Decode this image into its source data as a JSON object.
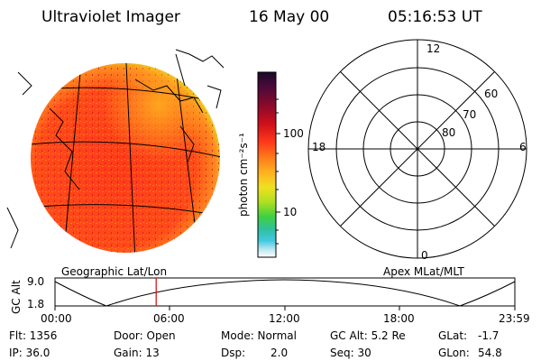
{
  "header": {
    "title": "Ultraviolet Imager",
    "date": "16 May 00",
    "time": "05:16:53 UT"
  },
  "colorbar": {
    "unit_label": "photon cm⁻²s⁻¹",
    "ticks": [
      "100",
      "10"
    ],
    "colors": [
      "#1a0a2a",
      "#4a0a3a",
      "#8a0a2a",
      "#d0101a",
      "#ff3a1a",
      "#ff7a1a",
      "#ffb020",
      "#f0e020",
      "#b0e020",
      "#40d040",
      "#30c0a0",
      "#40c8e0",
      "#c0e8f0",
      "#ffffff"
    ]
  },
  "polar_plot": {
    "mlt_labels": {
      "top": "12",
      "left": "18",
      "right": "6",
      "bottom": "0"
    },
    "lat_labels": [
      "60",
      "70",
      "80"
    ]
  },
  "orbit_panel": {
    "left_label": "Geographic Lat/Lon",
    "right_label": "Apex MLat/MLT",
    "axis_label": "GC Alt",
    "y_ticks": [
      "9.0",
      "1.8"
    ],
    "x_ticks": [
      "00:00",
      "06:00",
      "12:00",
      "18:00",
      "23:59"
    ],
    "current_time_marker_hours": 5.28
  },
  "info": {
    "flt": "Flt: 1356",
    "ip": "IP: 36.0",
    "door": "Door: Open",
    "gain": "Gain: 13",
    "mode": "Mode: Normal",
    "dsp_label": "Dsp:",
    "dsp_value": "2.0",
    "gc_alt": "GC Alt: 5.2 Re",
    "seq": "Seq: 30",
    "glat_label": "GLat:",
    "glat_value": "-1.7",
    "glon_label": "GLon:",
    "glon_value": "54.8"
  }
}
